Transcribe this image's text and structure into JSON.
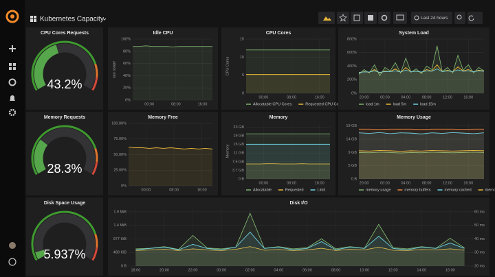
{
  "header": {
    "title": "Kubernetes Capacity",
    "time_range": "Last 24 hours"
  },
  "gauges": [
    {
      "title": "CPU Cores Requests",
      "value": 43.2,
      "value_label": "43.2%",
      "range": [
        0,
        100
      ]
    },
    {
      "title": "Memory Requests",
      "value": 28.3,
      "value_label": "28.3%",
      "range": [
        0,
        100
      ]
    },
    {
      "title": "Disk Space Usage",
      "value": 5.937,
      "value_label": "5.937%",
      "range": [
        0,
        100
      ]
    }
  ],
  "panels": [
    {
      "type": "line",
      "title": "Idle CPU",
      "ylabel": "cpu usage",
      "x": [
        -5,
        -3,
        -1,
        1,
        3,
        5,
        7,
        9,
        11,
        13,
        15,
        17,
        19
      ],
      "xlim": [
        -5,
        19
      ],
      "xticks": [
        {
          "value": 0,
          "label": "00:00"
        },
        {
          "value": 8,
          "label": "08:00"
        },
        {
          "value": 16,
          "label": "16:00"
        }
      ],
      "ylim": [
        0,
        100
      ],
      "yticks": [
        {
          "value": 0,
          "label": "0%"
        },
        {
          "value": 20,
          "label": "20%"
        },
        {
          "value": 40,
          "label": "40%"
        },
        {
          "value": 60,
          "label": "60%"
        },
        {
          "value": 80,
          "label": "80%"
        },
        {
          "value": 100,
          "label": "100%"
        }
      ],
      "series": [
        {
          "color": "#7eb26d",
          "values": [
            88,
            88,
            89,
            88,
            88,
            88,
            87,
            88,
            88,
            88,
            88,
            88,
            88
          ]
        }
      ]
    },
    {
      "type": "line",
      "title": "CPU Cores",
      "ylabel": "CPU Cores",
      "x": [
        -5,
        -3,
        -1,
        1,
        3,
        5,
        7,
        9,
        11,
        13,
        15,
        17,
        19
      ],
      "xlim": [
        -5,
        19
      ],
      "xticks": [
        {
          "value": 0,
          "label": "00:00"
        },
        {
          "value": 8,
          "label": "08:00"
        },
        {
          "value": 16,
          "label": "16:00"
        }
      ],
      "ylim": [
        0,
        15
      ],
      "yticks": [
        0,
        5,
        10,
        15
      ],
      "series": [
        {
          "name": "Allocatable CPU Cores",
          "color": "#7eb26d",
          "values": [
            12,
            12,
            12,
            12,
            12,
            12,
            12,
            12,
            12,
            12,
            12,
            12,
            12
          ]
        },
        {
          "name": "Requested CPU Cores",
          "color": "#eab839",
          "values": [
            5.2,
            5.2,
            5.2,
            5.2,
            5.2,
            5.2,
            5.2,
            5.2,
            5.2,
            5.2,
            5.2,
            5.2,
            5.2
          ]
        }
      ]
    },
    {
      "type": "line",
      "title": "System Load",
      "x": [
        -5,
        -4,
        -3,
        -2,
        -1,
        0,
        1,
        2,
        3,
        4,
        5,
        6,
        7,
        8,
        9,
        10,
        11,
        12,
        13,
        14,
        15,
        16,
        17,
        18,
        19
      ],
      "xlim": [
        -5,
        19
      ],
      "xticks": [
        {
          "value": -4,
          "label": "20:00"
        },
        {
          "value": 0,
          "label": "00:00"
        },
        {
          "value": 4,
          "label": "04:00"
        },
        {
          "value": 8,
          "label": "08:00"
        },
        {
          "value": 12,
          "label": "12:00"
        },
        {
          "value": 16,
          "label": "16:00"
        }
      ],
      "ylim": [
        0,
        800
      ],
      "yticks": [
        {
          "value": 0,
          "label": "0%"
        },
        {
          "value": 200,
          "label": "200%"
        },
        {
          "value": 400,
          "label": "400%"
        },
        {
          "value": 600,
          "label": "600%"
        },
        {
          "value": 800,
          "label": "800%"
        }
      ],
      "series": [
        {
          "name": "load 1m",
          "color": "#7eb26d",
          "values": [
            280,
            350,
            300,
            420,
            260,
            380,
            330,
            450,
            300,
            520,
            310,
            360,
            290,
            400,
            350,
            700,
            320,
            380,
            300,
            560,
            340,
            420,
            300,
            380,
            330
          ]
        },
        {
          "name": "load 5m",
          "color": "#eab839",
          "values": [
            300,
            320,
            310,
            350,
            300,
            330,
            320,
            360,
            310,
            380,
            320,
            330,
            310,
            350,
            330,
            420,
            320,
            340,
            320,
            390,
            330,
            350,
            320,
            340,
            330
          ]
        },
        {
          "name": "load 15m",
          "color": "#6ed0e0",
          "values": [
            310,
            315,
            315,
            330,
            310,
            320,
            320,
            330,
            315,
            340,
            320,
            325,
            315,
            330,
            325,
            360,
            320,
            330,
            320,
            345,
            325,
            330,
            320,
            330,
            325
          ]
        }
      ]
    },
    {
      "type": "line",
      "title": "Memory Free",
      "x": [
        -5,
        -3,
        -1,
        1,
        3,
        5,
        7,
        9,
        11,
        13,
        15,
        17,
        19
      ],
      "xlim": [
        -5,
        19
      ],
      "xticks": [
        {
          "value": 0,
          "label": "00:00"
        },
        {
          "value": 8,
          "label": "08:00"
        },
        {
          "value": 16,
          "label": "16:00"
        }
      ],
      "ylim": [
        0,
        100
      ],
      "yticks": [
        {
          "value": 0,
          "label": "0%"
        },
        {
          "value": 25,
          "label": "25.00%"
        },
        {
          "value": 50,
          "label": "50.00%"
        },
        {
          "value": 75,
          "label": "75.00%"
        },
        {
          "value": 100,
          "label": "100.00%"
        }
      ],
      "series": [
        {
          "color": "#eab839",
          "values": [
            62,
            61,
            61,
            60,
            61,
            60,
            61,
            60,
            59,
            60,
            59,
            60,
            59
          ]
        }
      ]
    },
    {
      "type": "line",
      "title": "Memory",
      "ylabel": "Memory",
      "x": [
        -5,
        -3,
        -1,
        1,
        3,
        5,
        7,
        9,
        11,
        13,
        15,
        17,
        19
      ],
      "xlim": [
        -5,
        19
      ],
      "xticks": [
        {
          "value": 0,
          "label": "00:00"
        },
        {
          "value": 8,
          "label": "08:00"
        },
        {
          "value": 16,
          "label": "16:00"
        }
      ],
      "ylim": [
        0,
        24
      ],
      "yticks": [
        {
          "value": 0,
          "label": "0 B"
        },
        {
          "value": 3.73,
          "label": "3.7 GB"
        },
        {
          "value": 7.45,
          "label": "7.5 GB"
        },
        {
          "value": 11.18,
          "label": "11 GB"
        },
        {
          "value": 14.9,
          "label": "15 GB"
        },
        {
          "value": 18.63,
          "label": "19 GB"
        },
        {
          "value": 22.35,
          "label": "23 GB"
        }
      ],
      "series": [
        {
          "name": "Allocatable",
          "color": "#7eb26d",
          "values": [
            19.5,
            19.5,
            19.5,
            19.5,
            19.5,
            19.5,
            19.5,
            19.5,
            19.5,
            19.5,
            19.5,
            19.5,
            19.5
          ]
        },
        {
          "name": "Requested",
          "color": "#eab839",
          "values": [
            6.5,
            6.5,
            6.5,
            6.6,
            6.6,
            6.5,
            6.5,
            6.5,
            6.6,
            6.5,
            6.5,
            6.5,
            6.5
          ]
        },
        {
          "name": "Limit",
          "color": "#6ed0e0",
          "values": [
            15,
            15,
            15,
            15,
            15,
            15,
            15,
            15,
            15,
            15,
            15,
            15,
            15
          ]
        }
      ]
    },
    {
      "type": "line",
      "title": "Memory Usage",
      "x": [
        -5,
        -3,
        -1,
        1,
        3,
        5,
        7,
        9,
        11,
        13,
        15,
        17,
        19
      ],
      "xlim": [
        -5,
        19
      ],
      "xticks": [
        {
          "value": -4,
          "label": "20:00"
        },
        {
          "value": 0,
          "label": "00:00"
        },
        {
          "value": 4,
          "label": "04:00"
        },
        {
          "value": 8,
          "label": "08:00"
        },
        {
          "value": 12,
          "label": "12:00"
        },
        {
          "value": 16,
          "label": "16:00"
        }
      ],
      "ylim": [
        0,
        19.5
      ],
      "yticks": [
        {
          "value": 0,
          "label": "0 B"
        },
        {
          "value": 4.66,
          "label": "5 GB"
        },
        {
          "value": 9.31,
          "label": "9 GB"
        },
        {
          "value": 13.97,
          "label": "14 GB"
        },
        {
          "value": 18.63,
          "label": "19 GB"
        }
      ],
      "series": [
        {
          "name": "memory usage",
          "color": "#7eb26d",
          "values": [
            9.3,
            9.2,
            9.4,
            9.3,
            9.1,
            9.3,
            9.2,
            9.4,
            9.3,
            9.2,
            9.3,
            9.4,
            9.3
          ]
        },
        {
          "name": "memory buffers",
          "color": "#ef843c",
          "values": [
            17.5,
            17.5,
            17.4,
            17.5,
            17.5,
            17.5,
            17.4,
            17.5,
            17.5,
            17.5,
            17.4,
            17.5,
            17.5
          ]
        },
        {
          "name": "memory cached",
          "color": "#6ed0e0",
          "values": [
            16.2,
            16.0,
            16.3,
            15.9,
            16.2,
            16.1,
            15.8,
            16.2,
            16.0,
            16.3,
            16.1,
            15.9,
            16.2
          ]
        },
        {
          "name": "memory free",
          "color": "#eab839",
          "values": [
            9.9,
            9.8,
            10.0,
            9.9,
            9.7,
            9.9,
            9.8,
            10.0,
            9.9,
            9.8,
            9.9,
            10.0,
            9.9
          ]
        }
      ]
    },
    {
      "type": "line",
      "title": "Disk I/O",
      "x": [
        -6,
        -5,
        -4,
        -3,
        -2,
        -1,
        0,
        1,
        2,
        3,
        4,
        5,
        6,
        7,
        8,
        9,
        10,
        11,
        12,
        13,
        14,
        15,
        16,
        17
      ],
      "xlim": [
        -6.5,
        17.5
      ],
      "xticks": [
        {
          "value": -6,
          "label": "18:00"
        },
        {
          "value": -4,
          "label": "20:00"
        },
        {
          "value": -2,
          "label": "22:00"
        },
        {
          "value": 0,
          "label": "00:00"
        },
        {
          "value": 2,
          "label": "02:00"
        },
        {
          "value": 4,
          "label": "04:00"
        },
        {
          "value": 6,
          "label": "06:00"
        },
        {
          "value": 8,
          "label": "08:00"
        },
        {
          "value": 10,
          "label": "10:00"
        },
        {
          "value": 12,
          "label": "12:00"
        },
        {
          "value": 14,
          "label": "14:00"
        },
        {
          "value": 16,
          "label": "16:00"
        }
      ],
      "ylim": [
        0,
        2050
      ],
      "yticks": [
        {
          "value": 0,
          "label": "0 B"
        },
        {
          "value": 488,
          "label": "488 KiB"
        },
        {
          "value": 977,
          "label": "977 KiB"
        },
        {
          "value": 1465,
          "label": "1.4 MiB"
        },
        {
          "value": 1953,
          "label": "1.9 MiB"
        }
      ],
      "y2lim": [
        20,
        62
      ],
      "y2ticks": [
        {
          "value": 20,
          "label": "20 ms"
        },
        {
          "value": 30,
          "label": "30 ms"
        },
        {
          "value": 40,
          "label": "40 ms"
        },
        {
          "value": 50,
          "label": "50 ms"
        },
        {
          "value": 60,
          "label": "60 ms"
        }
      ],
      "series": [
        {
          "color": "#7eb26d",
          "values": [
            620,
            640,
            700,
            600,
            1100,
            650,
            620,
            680,
            1900,
            640,
            700,
            620,
            660,
            980,
            620,
            700,
            640,
            1500,
            660,
            620,
            700,
            640,
            1000,
            650
          ]
        },
        {
          "color": "#eab839",
          "values": [
            560,
            580,
            600,
            560,
            620,
            580,
            560,
            600,
            700,
            570,
            590,
            560,
            580,
            640,
            560,
            600,
            580,
            680,
            570,
            560,
            590,
            580,
            620,
            570
          ]
        },
        {
          "color": "#6ed0e0",
          "axis": "y2",
          "values": [
            32,
            33,
            34,
            32,
            36,
            33,
            32,
            34,
            45,
            33,
            34,
            32,
            33,
            38,
            32,
            34,
            33,
            42,
            33,
            32,
            34,
            33,
            37,
            33
          ]
        }
      ]
    }
  ]
}
